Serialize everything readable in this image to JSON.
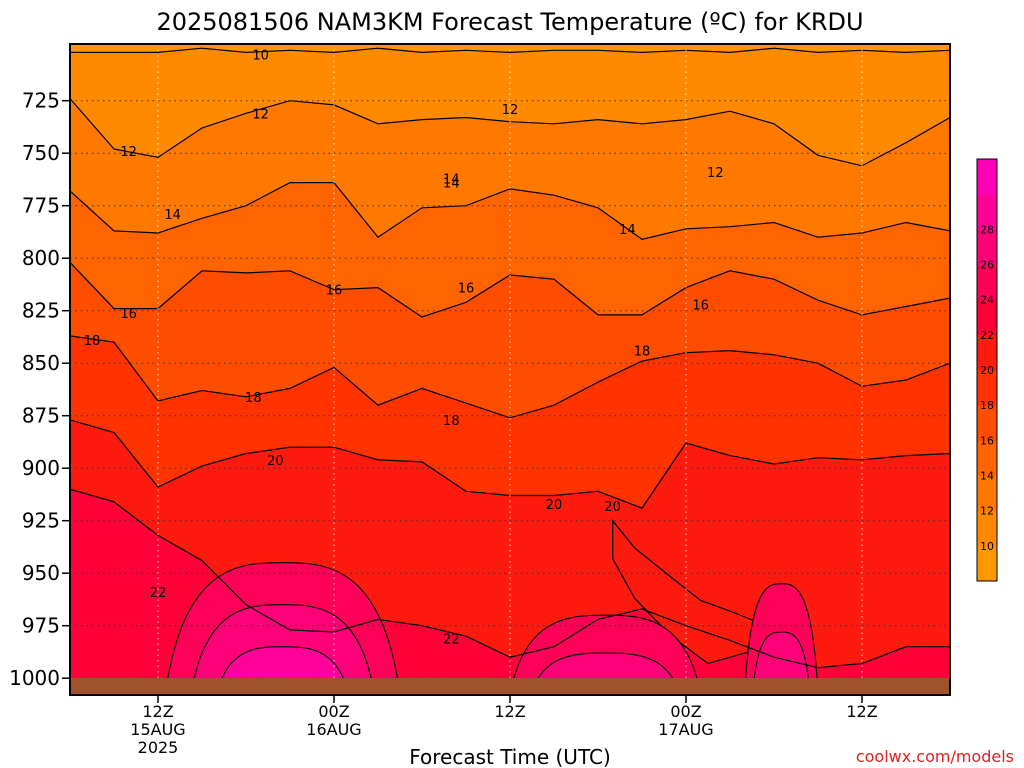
{
  "chart_data": {
    "type": "heatmap",
    "title": "2025081506 NAM3KM Forecast Temperature (ºC) for KRDU",
    "xlabel": "Forecast Time (UTC)",
    "ylabel": "",
    "credit": "coolwx.com/models",
    "y_axis": {
      "quantity": "pressure (hPa)",
      "range": [
        1008,
        698
      ],
      "direction": "decreasing upward",
      "ticks": [
        725,
        750,
        775,
        800,
        825,
        850,
        875,
        900,
        925,
        950,
        975,
        1000
      ],
      "tick_labels": [
        "725",
        "750",
        "775",
        "800",
        "825",
        "850",
        "875",
        "900",
        "925",
        "950",
        "975",
        "1000"
      ]
    },
    "x_axis": {
      "range": [
        "2025-08-15T06Z",
        "2025-08-17T18Z"
      ],
      "ticks": [
        "2025-08-15T12Z",
        "2025-08-16T00Z",
        "2025-08-16T12Z",
        "2025-08-17T00Z",
        "2025-08-17T12Z"
      ],
      "tick_labels": [
        {
          "line1": "12Z",
          "line2": "15AUG",
          "line3": "2025"
        },
        {
          "line1": "00Z",
          "line2": "16AUG",
          "line3": ""
        },
        {
          "line1": "12Z",
          "line2": "",
          "line3": ""
        },
        {
          "line1": "00Z",
          "line2": "17AUG",
          "line3": ""
        },
        {
          "line1": "12Z",
          "line2": "",
          "line3": ""
        }
      ]
    },
    "grid": true,
    "colorbar": {
      "position": "right",
      "levels": [
        10,
        12,
        14,
        16,
        18,
        20,
        22,
        24,
        26,
        28
      ],
      "labels": [
        "10",
        "12",
        "14",
        "16",
        "18",
        "20",
        "22",
        "24",
        "26",
        "28"
      ],
      "colors": [
        "#ff9800",
        "#ff8a00",
        "#ff7800",
        "#ff6400",
        "#ff4d00",
        "#ff3200",
        "#ff1a10",
        "#ff0038",
        "#ff0058",
        "#ff0078",
        "#ff0098",
        "#ff00b8"
      ]
    },
    "ground_color": "#a0522d",
    "contours": [
      {
        "value": 10,
        "label": "10",
        "pressure": [
          702,
          702,
          702,
          700,
          702,
          701,
          702,
          700,
          702,
          701,
          702,
          701,
          701,
          702,
          701,
          702,
          700,
          702,
          701,
          702,
          701
        ]
      },
      {
        "value": 12,
        "label": "12",
        "pressure": [
          724,
          748,
          752,
          738,
          731,
          725,
          727,
          736,
          734,
          733,
          735,
          736,
          734,
          736,
          734,
          730,
          736,
          751,
          756,
          745,
          733
        ]
      },
      {
        "value": 14,
        "label": "14",
        "pressure": [
          768,
          787,
          788,
          781,
          775,
          764,
          764,
          790,
          776,
          775,
          767,
          770,
          776,
          791,
          786,
          785,
          783,
          790,
          788,
          783,
          787
        ]
      },
      {
        "value": 16,
        "label": "16",
        "pressure": [
          802,
          824,
          824,
          806,
          807,
          806,
          815,
          814,
          828,
          821,
          808,
          810,
          827,
          827,
          814,
          806,
          810,
          820,
          827,
          823,
          819
        ]
      },
      {
        "value": 18,
        "label": "18",
        "pressure": [
          837,
          840,
          868,
          863,
          866,
          862,
          852,
          870,
          862,
          869,
          876,
          870,
          859,
          849,
          845,
          844,
          846,
          850,
          861,
          858,
          850
        ]
      },
      {
        "value": 20,
        "label": "20",
        "pressure": [
          877,
          883,
          909,
          899,
          893,
          890,
          890,
          896,
          897,
          911,
          913,
          913,
          911,
          919,
          888,
          894,
          898,
          895,
          896,
          894,
          893
        ]
      },
      {
        "value": 22,
        "label": "22",
        "pressure": [
          910,
          916,
          932,
          944,
          965,
          977,
          978,
          972,
          975,
          980,
          990,
          985,
          972,
          967,
          975,
          982,
          990,
          995,
          993,
          985,
          985
        ]
      }
    ],
    "contour_labels": [
      {
        "text": "10",
        "x": 13.0,
        "pressure": 703
      },
      {
        "text": "12",
        "x": 4.0,
        "pressure": 749
      },
      {
        "text": "12",
        "x": 13.0,
        "pressure": 731
      },
      {
        "text": "12",
        "x": 30.0,
        "pressure": 729
      },
      {
        "text": "12",
        "x": 44.0,
        "pressure": 759
      },
      {
        "text": "14",
        "x": 7.0,
        "pressure": 779
      },
      {
        "text": "14",
        "x": 26.0,
        "pressure": 762
      },
      {
        "text": "14",
        "x": 38.0,
        "pressure": 786
      },
      {
        "text": "14",
        "x": 26.0,
        "pressure": 764
      },
      {
        "text": "16",
        "x": 4.0,
        "pressure": 826
      },
      {
        "text": "16",
        "x": 18.0,
        "pressure": 815
      },
      {
        "text": "16",
        "x": 27.0,
        "pressure": 814
      },
      {
        "text": "16",
        "x": 43.0,
        "pressure": 822
      },
      {
        "text": "18",
        "x": 1.5,
        "pressure": 839
      },
      {
        "text": "18",
        "x": 12.5,
        "pressure": 866
      },
      {
        "text": "18",
        "x": 26.0,
        "pressure": 877
      },
      {
        "text": "18",
        "x": 39.0,
        "pressure": 844
      },
      {
        "text": "20",
        "x": 14.0,
        "pressure": 896
      },
      {
        "text": "20",
        "x": 33.0,
        "pressure": 917
      },
      {
        "text": "20",
        "x": 37.0,
        "pressure": 918
      },
      {
        "text": "22",
        "x": 6.0,
        "pressure": 959
      },
      {
        "text": "22",
        "x": 26.0,
        "pressure": 981
      }
    ],
    "warm_cores": [
      {
        "center_x": 14.5,
        "center_pressure": 1001,
        "half_width_hours": 8,
        "levels": [
          24,
          26,
          28
        ],
        "tops": [
          945,
          965,
          985
        ]
      },
      {
        "center_x": 36.5,
        "center_pressure": 1000,
        "half_width_hours": 6.5,
        "levels": [
          24,
          26
        ],
        "tops": [
          970,
          988
        ]
      },
      {
        "center_x": 48.5,
        "center_pressure": 1000,
        "half_width_hours": 2.5,
        "levels": [
          24,
          26
        ],
        "tops": [
          955,
          978
        ]
      }
    ],
    "cool_pocket": {
      "label": "20",
      "points": [
        [
          37.0,
          925
        ],
        [
          38.5,
          938
        ],
        [
          41,
          952
        ],
        [
          43,
          963
        ],
        [
          45,
          968
        ],
        [
          47.5,
          975
        ],
        [
          46.5,
          987
        ],
        [
          43.5,
          993
        ],
        [
          41,
          980
        ],
        [
          38.5,
          962
        ],
        [
          37.0,
          943
        ]
      ]
    }
  }
}
